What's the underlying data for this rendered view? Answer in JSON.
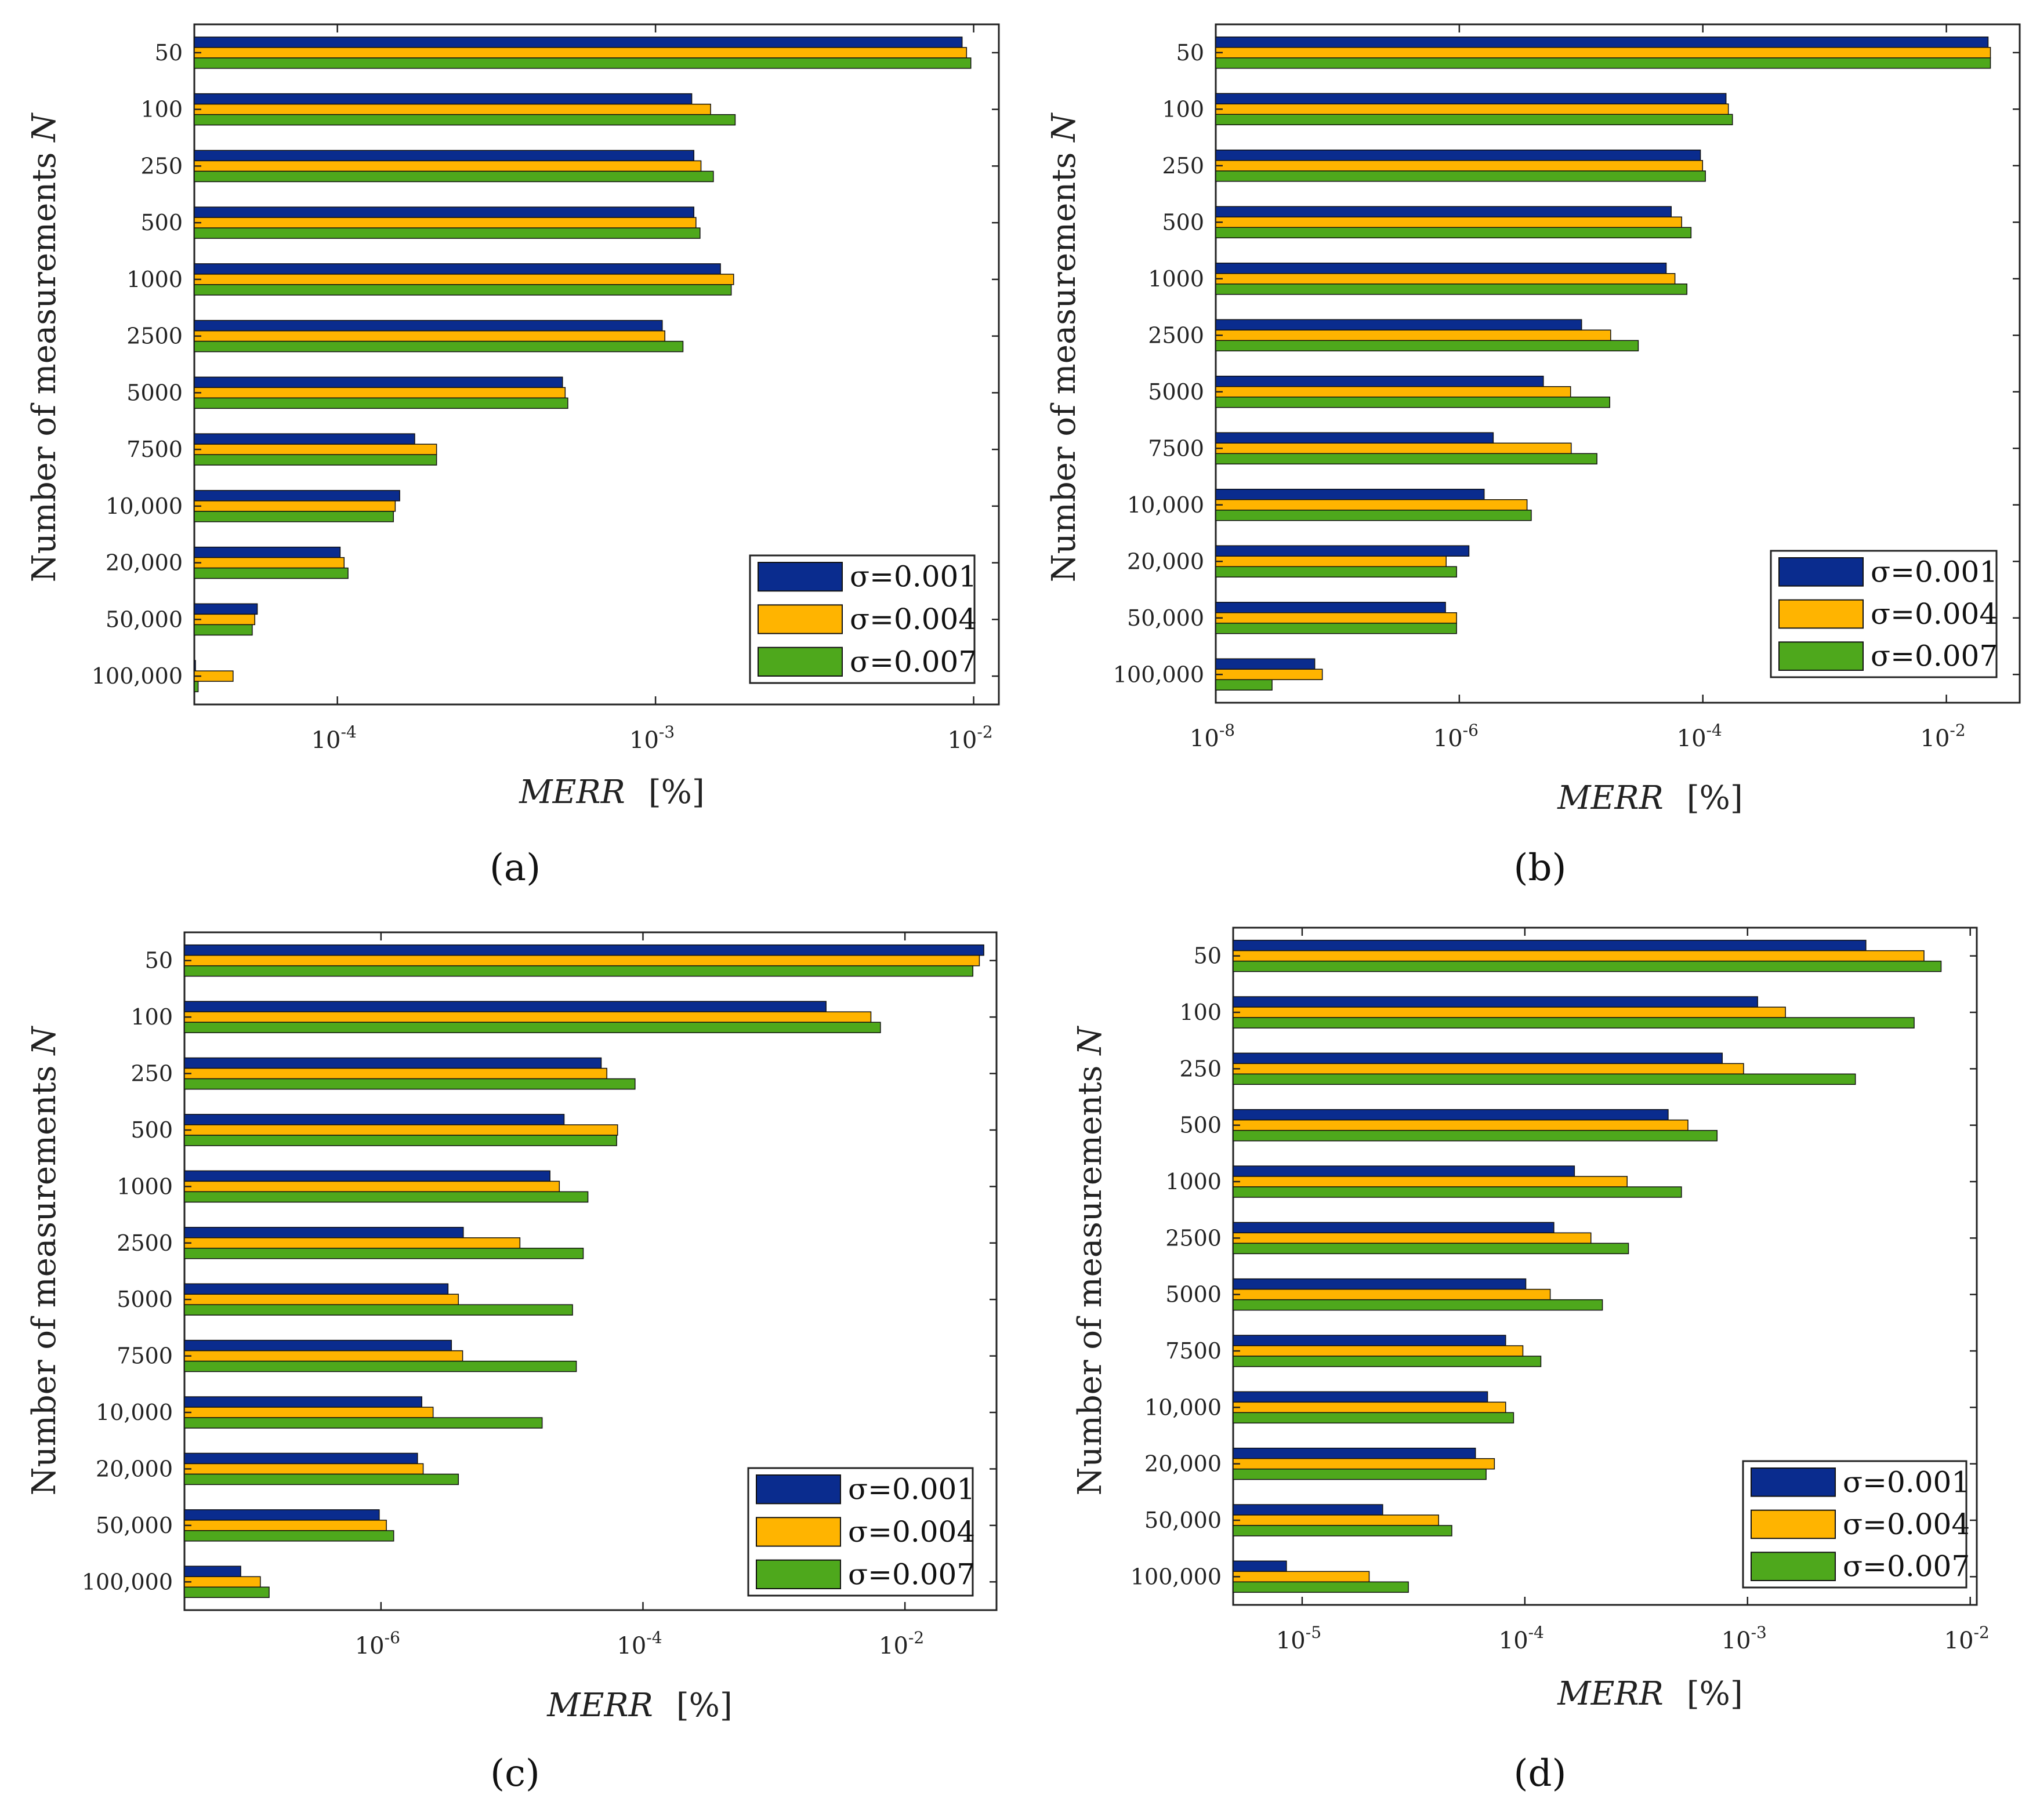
{
  "figure": {
    "series_names": [
      "σ=0.001",
      "σ=0.004",
      "σ=0.007"
    ],
    "series_colors": [
      "#0a2c8e",
      "#ffb400",
      "#4ea81c"
    ],
    "categories": [
      "50",
      "100",
      "250",
      "500",
      "1000",
      "2500",
      "5000",
      "7500",
      "10,000",
      "20,000",
      "50,000",
      "100,000"
    ]
  },
  "chart_data": [
    {
      "type": "bar",
      "orientation": "horizontal",
      "xscale": "log",
      "label": "(a)",
      "xlabel": "MERR",
      "xlabel_unit": "[%]",
      "ylabel": "Number of measurements",
      "ylabel_var": "N",
      "xlim": [
        3.55e-05,
        0.012
      ],
      "xticks": [
        {
          "v": 0.0001,
          "m": "10",
          "e": "-4"
        },
        {
          "v": 0.001,
          "m": "10",
          "e": "-3"
        },
        {
          "v": 0.01,
          "m": "10",
          "e": "-2"
        }
      ],
      "legend": "bottom-right",
      "categories": [
        "50",
        "100",
        "250",
        "500",
        "1000",
        "2500",
        "5000",
        "7500",
        "10,000",
        "20,000",
        "50,000",
        "100,000"
      ],
      "series": [
        {
          "name": "σ=0.001",
          "values": [
            0.0092,
            0.0013,
            0.00132,
            0.00132,
            0.0016,
            0.00105,
            0.00051,
            0.000175,
            0.000157,
            0.000102,
            5.6e-05,
            3.55e-05
          ]
        },
        {
          "name": "σ=0.004",
          "values": [
            0.0095,
            0.00149,
            0.00139,
            0.00134,
            0.00176,
            0.00107,
            0.00052,
            0.000205,
            0.000152,
            0.000105,
            5.5e-05,
            4.7e-05
          ]
        },
        {
          "name": "σ=0.007",
          "values": [
            0.0098,
            0.00178,
            0.00152,
            0.00138,
            0.00173,
            0.00122,
            0.00053,
            0.000205,
            0.00015,
            0.000108,
            5.4e-05,
            3.65e-05
          ]
        }
      ]
    },
    {
      "type": "bar",
      "orientation": "horizontal",
      "xscale": "log",
      "label": "(b)",
      "xlabel": "MERR",
      "xlabel_unit": "[%]",
      "ylabel": "Number of measurements",
      "ylabel_var": "N",
      "xlim": [
        1e-08,
        0.04
      ],
      "xticks": [
        {
          "v": 1e-08,
          "m": "10",
          "e": "-8"
        },
        {
          "v": 1e-06,
          "m": "10",
          "e": "-6"
        },
        {
          "v": 0.0001,
          "m": "10",
          "e": "-4"
        },
        {
          "v": 0.01,
          "m": "10",
          "e": "-2"
        }
      ],
      "legend": "bottom-right",
      "categories": [
        "50",
        "100",
        "250",
        "500",
        "1000",
        "2500",
        "5000",
        "7500",
        "10,000",
        "20,000",
        "50,000",
        "100,000"
      ],
      "series": [
        {
          "name": "σ=0.001",
          "values": [
            0.022,
            0.000155,
            9.55e-05,
            5.5e-05,
            5e-05,
            1.01e-05,
            4.9e-06,
            1.9e-06,
            1.6e-06,
            1.2e-06,
            7.7e-07,
            6.5e-08
          ]
        },
        {
          "name": "σ=0.004",
          "values": [
            0.023,
            0.000162,
            9.95e-05,
            6.7e-05,
            5.9e-05,
            1.75e-05,
            8.2e-06,
            8.3e-06,
            3.6e-06,
            7.8e-07,
            9.5e-07,
            7.5e-08
          ]
        },
        {
          "name": "σ=0.007",
          "values": [
            0.023,
            0.000175,
            0.000105,
            8e-05,
            7.4e-05,
            2.95e-05,
            1.72e-05,
            1.35e-05,
            3.9e-06,
            9.5e-07,
            9.5e-07,
            2.9e-08
          ]
        }
      ]
    },
    {
      "type": "bar",
      "orientation": "horizontal",
      "xscale": "log",
      "label": "(c)",
      "xlabel": "MERR",
      "xlabel_unit": "[%]",
      "ylabel": "Number of measurements",
      "ylabel_var": "N",
      "xlim": [
        3.16e-08,
        0.05
      ],
      "xticks": [
        {
          "v": 1e-06,
          "m": "10",
          "e": "-6"
        },
        {
          "v": 0.0001,
          "m": "10",
          "e": "-4"
        },
        {
          "v": 0.01,
          "m": "10",
          "e": "-2"
        }
      ],
      "legend": "bottom-right",
      "categories": [
        "50",
        "100",
        "250",
        "500",
        "1000",
        "2500",
        "5000",
        "7500",
        "10,000",
        "20,000",
        "50,000",
        "100,000"
      ],
      "series": [
        {
          "name": "σ=0.001",
          "values": [
            0.04,
            0.0025,
            4.8e-05,
            2.5e-05,
            1.95e-05,
            4.25e-06,
            3.25e-06,
            3.45e-06,
            2.05e-06,
            1.9e-06,
            9.7e-07,
            8.5e-08
          ]
        },
        {
          "name": "σ=0.004",
          "values": [
            0.037,
            0.0055,
            5.3e-05,
            6.4e-05,
            2.3e-05,
            1.15e-05,
            3.9e-06,
            4.2e-06,
            2.5e-06,
            2.1e-06,
            1.1e-06,
            1.2e-07
          ]
        },
        {
          "name": "σ=0.007",
          "values": [
            0.033,
            0.0065,
            8.7e-05,
            6.3e-05,
            3.8e-05,
            3.5e-05,
            2.9e-05,
            3.1e-05,
            1.7e-05,
            3.9e-06,
            1.25e-06,
            1.4e-07
          ]
        }
      ]
    },
    {
      "type": "bar",
      "orientation": "horizontal",
      "xscale": "log",
      "label": "(d)",
      "xlabel": "MERR",
      "xlabel_unit": "[%]",
      "ylabel": "Number of measurements",
      "ylabel_var": "N",
      "xlim": [
        4.9e-06,
        0.0107
      ],
      "xticks": [
        {
          "v": 1e-05,
          "m": "10",
          "e": "-5"
        },
        {
          "v": 0.0001,
          "m": "10",
          "e": "-4"
        },
        {
          "v": 0.001,
          "m": "10",
          "e": "-3"
        },
        {
          "v": 0.01,
          "m": "10",
          "e": "-2"
        }
      ],
      "legend": "bottom-right",
      "categories": [
        "50",
        "100",
        "250",
        "500",
        "1000",
        "2500",
        "5000",
        "7500",
        "10,000",
        "20,000",
        "50,000",
        "100,000"
      ],
      "series": [
        {
          "name": "σ=0.001",
          "values": [
            0.0034,
            0.00111,
            0.00077,
            0.00044,
            0.000167,
            0.000135,
            0.000101,
            8.2e-05,
            6.8e-05,
            6e-05,
            2.3e-05,
            8.5e-06
          ]
        },
        {
          "name": "σ=0.004",
          "values": [
            0.0062,
            0.00148,
            0.00096,
            0.00054,
            0.000288,
            0.000198,
            0.00013,
            9.8e-05,
            8.2e-05,
            7.3e-05,
            4.1e-05,
            2e-05
          ]
        },
        {
          "name": "σ=0.007",
          "values": [
            0.0074,
            0.0056,
            0.00305,
            0.00073,
            0.000505,
            0.000292,
            0.000223,
            0.000118,
            8.9e-05,
            6.7e-05,
            4.7e-05,
            3e-05
          ]
        }
      ]
    }
  ]
}
